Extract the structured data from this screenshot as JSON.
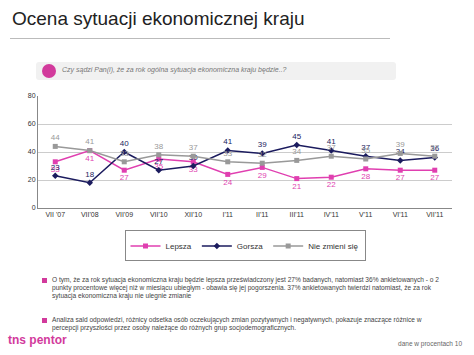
{
  "chart_data": {
    "type": "line",
    "title": "Ocena sytuacji ekonomicznej kraju",
    "subtitle": "Czy sądzi Pan(i), że za rok ogólna sytuacja ekonomiczna kraju będzie..?",
    "categories": [
      "VII '07",
      "VII'08",
      "VII'09",
      "VII'10",
      "XII'10",
      "I'11",
      "II'11",
      "III'11",
      "IV'11",
      "V'11",
      "VI'11",
      "VII'11"
    ],
    "series": [
      {
        "name": "Lepsza",
        "color": "#e03fb0",
        "marker": "square",
        "line_style": "solid",
        "values": [
          33,
          41,
          27,
          35,
          33,
          24,
          29,
          21,
          22,
          28,
          27,
          27
        ]
      },
      {
        "name": "Gorsza",
        "color": "#1b1b5e",
        "marker": "diamond",
        "line_style": "solid",
        "values": [
          23,
          18,
          40,
          27,
          30,
          41,
          39,
          45,
          41,
          37,
          34,
          36
        ]
      },
      {
        "name": "Nie zmieni się",
        "color": "#999999",
        "marker": "square",
        "line_style": "solid",
        "values": [
          44,
          41,
          33,
          38,
          37,
          33,
          32,
          34,
          37,
          35,
          39,
          37
        ]
      }
    ],
    "ylim": [
      0,
      80
    ],
    "yticks": [
      0,
      20,
      40,
      60,
      80
    ],
    "grid": true,
    "legend": "bottom",
    "data_labels": true
  },
  "text": {
    "bullets": [
      "O tym, że za rok sytuacja ekonomiczna kraju będzie lepsza przeświadczony jest 27% badanych, natomiast 36% ankietowanych - o 2 punkty procentowe więcej niż w miesiącu ubiegłym - obawia się jej pogorszenia. 37% ankietowanych twierdzi natomiast, że za rok sytuacja ekonomiczna kraju nie ulegnie zmianie",
      "Analiza sald odpowiedzi, różnicy odsetka osób oczekujących zmian pozytywnych i negatywnych, pokazuje znaczące różnice w percepcji przyszłości przez osoby należące do różnych grup socjodemograficznych."
    ],
    "footer": "dane w procentach",
    "page": "10",
    "logo": "tns pentor"
  }
}
